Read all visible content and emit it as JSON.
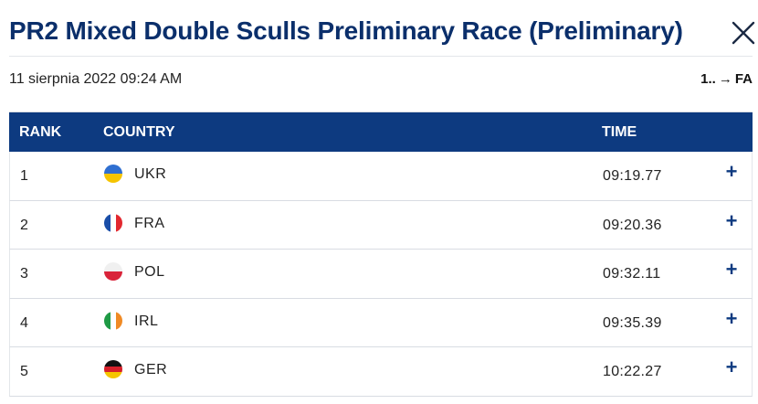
{
  "header": {
    "title": "PR2 Mixed Double Sculls Preliminary Race (Preliminary)",
    "close_icon": "close-icon"
  },
  "meta": {
    "datetime": "11 sierpnia 2022 09:24 AM",
    "progression_from": "1..",
    "progression_arrow": "→",
    "progression_to": "FA"
  },
  "table": {
    "columns": {
      "rank": "RANK",
      "country": "COUNTRY",
      "time": "TIME"
    },
    "header_color": "#0d3a80",
    "rows": [
      {
        "rank": "1",
        "country": "UKR",
        "time": "09:19.77",
        "expand": "+",
        "flag": {
          "orientation": "h",
          "colors": [
            "#2f6fd1",
            "#f5c400"
          ]
        }
      },
      {
        "rank": "2",
        "country": "FRA",
        "time": "09:20.36",
        "expand": "+",
        "flag": {
          "orientation": "v",
          "colors": [
            "#1a4ea8",
            "#ffffff",
            "#e2282f"
          ]
        }
      },
      {
        "rank": "3",
        "country": "POL",
        "time": "09:32.11",
        "expand": "+",
        "flag": {
          "orientation": "h",
          "colors": [
            "#f0f0f0",
            "#d9243a"
          ]
        }
      },
      {
        "rank": "4",
        "country": "IRL",
        "time": "09:35.39",
        "expand": "+",
        "flag": {
          "orientation": "v",
          "colors": [
            "#1f9a45",
            "#ffffff",
            "#f08a24"
          ]
        }
      },
      {
        "rank": "5",
        "country": "GER",
        "time": "10:22.27",
        "expand": "+",
        "flag": {
          "orientation": "h",
          "colors": [
            "#111111",
            "#d6202a",
            "#f5c400"
          ]
        }
      }
    ]
  }
}
